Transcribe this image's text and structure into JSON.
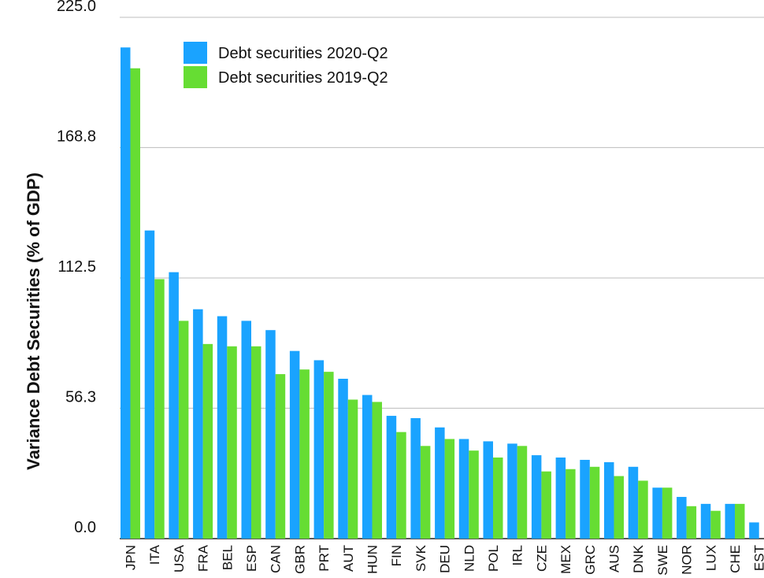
{
  "chart_data": {
    "type": "bar",
    "title": "",
    "xlabel": "",
    "ylabel": "Variance Debt Securities (% of GDP)",
    "ylim": [
      0,
      225
    ],
    "yticks": [
      "0.0",
      "56.3",
      "112.5",
      "168.8",
      "225.0"
    ],
    "grid": true,
    "legend_position": "top-left",
    "categories": [
      "JPN",
      "ITA",
      "USA",
      "FRA",
      "BEL",
      "ESP",
      "CAN",
      "GBR",
      "PRT",
      "AUT",
      "HUN",
      "FIN",
      "SVK",
      "DEU",
      "NLD",
      "POL",
      "IRL",
      "CZE",
      "MEX",
      "GRC",
      "AUS",
      "DNK",
      "SWE",
      "NOR",
      "LUX",
      "CHE",
      "EST"
    ],
    "series": [
      {
        "name": "Debt securities 2020-Q2",
        "color": "#1aa3ff",
        "values": [
          212,
          133,
          115,
          99,
          96,
          94,
          90,
          81,
          77,
          69,
          62,
          53,
          52,
          48,
          43,
          42,
          41,
          36,
          35,
          34,
          33,
          31,
          22,
          18,
          15,
          15,
          7
        ]
      },
      {
        "name": "Debt securities 2019-Q2",
        "color": "#66dd33",
        "values": [
          203,
          112,
          94,
          84,
          83,
          83,
          71,
          73,
          72,
          60,
          59,
          46,
          40,
          43,
          38,
          35,
          40,
          29,
          30,
          31,
          27,
          25,
          22,
          14,
          12,
          15,
          null
        ]
      }
    ]
  }
}
